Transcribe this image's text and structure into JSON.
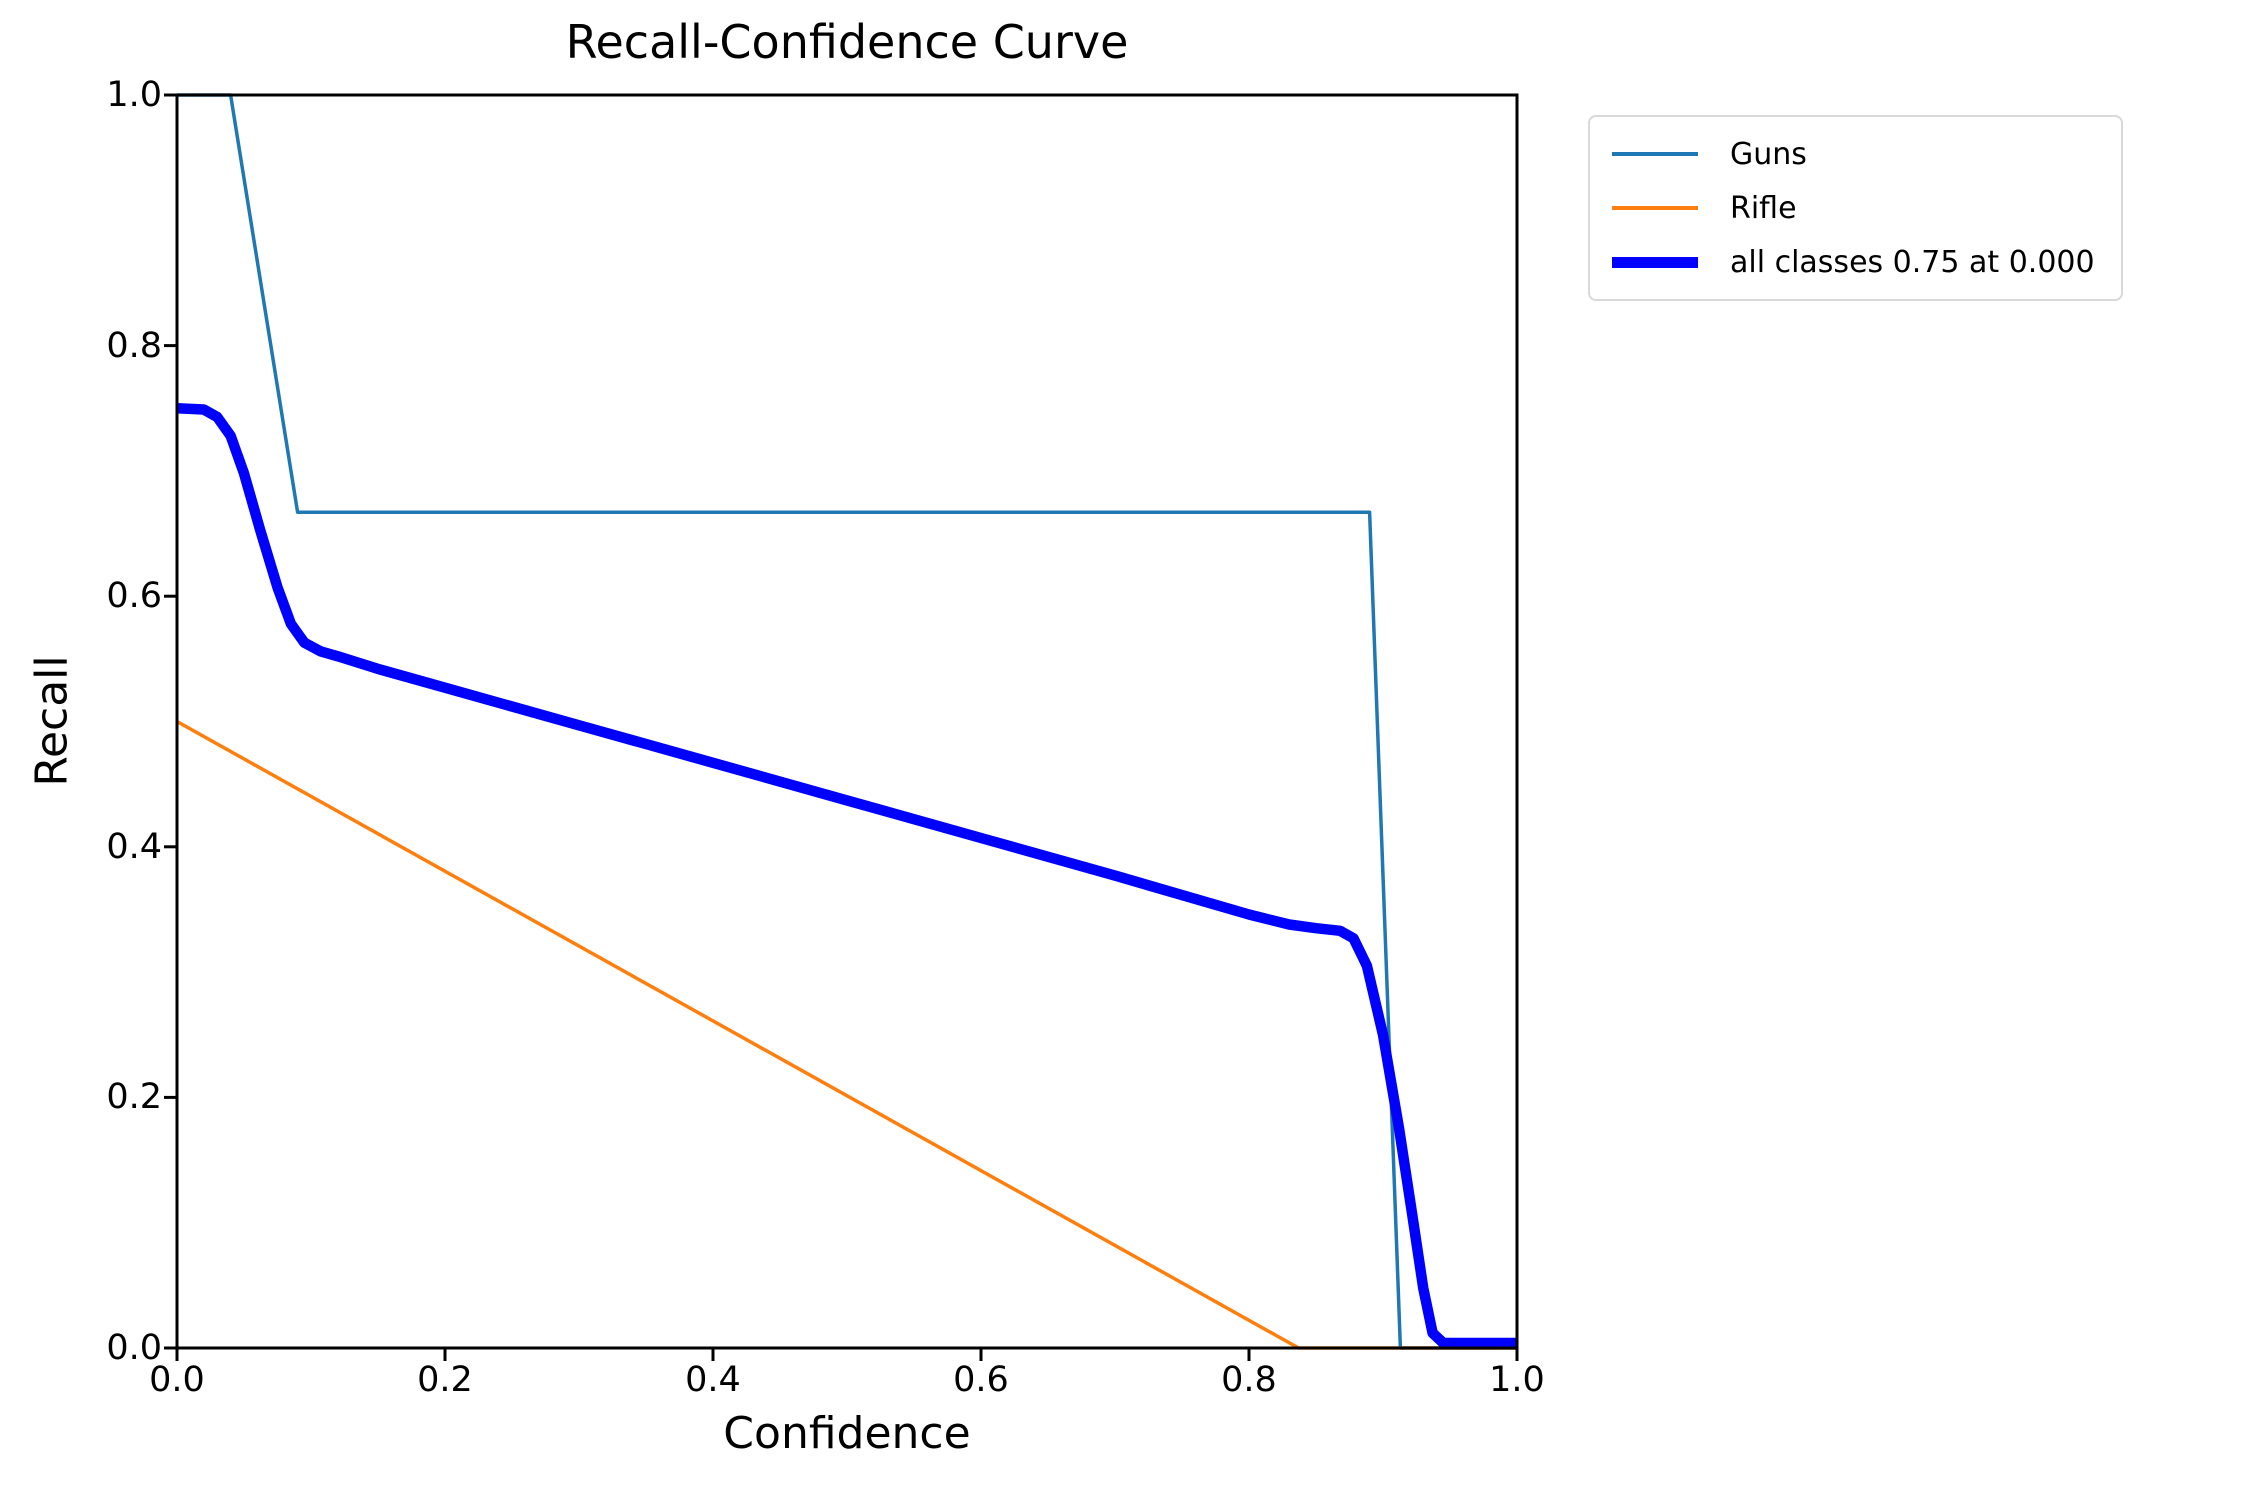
{
  "figure": {
    "title": "Recall-Confidence Curve",
    "xlabel": "Confidence",
    "ylabel": "Recall"
  },
  "legend": {
    "position": "outside-upper-right",
    "items": [
      {
        "label": "Guns",
        "color": "#1f77b4",
        "weight": "thin"
      },
      {
        "label": "Rifle",
        "color": "#ff7f0e",
        "weight": "thin"
      },
      {
        "label": "all classes 0.75 at 0.000",
        "color": "#0000ff",
        "weight": "thick"
      }
    ]
  },
  "chart_data": {
    "type": "line",
    "title": "Recall-Confidence Curve",
    "xlabel": "Confidence",
    "ylabel": "Recall",
    "xlim": [
      0.0,
      1.0
    ],
    "ylim": [
      0.0,
      1.0
    ],
    "xticks": [
      0.0,
      0.2,
      0.4,
      0.6,
      0.8,
      1.0
    ],
    "yticks": [
      0.0,
      0.2,
      0.4,
      0.6,
      0.8,
      1.0
    ],
    "xtick_labels": [
      "0.0",
      "0.2",
      "0.4",
      "0.6",
      "0.8",
      "1.0"
    ],
    "ytick_labels": [
      "0.0",
      "0.2",
      "0.4",
      "0.6",
      "0.8",
      "1.0"
    ],
    "grid": false,
    "legend_position": "outside upper right",
    "axis_color": "#000000",
    "series": [
      {
        "name": "Guns",
        "color": "#1f77b4",
        "linewidth": 3.5,
        "points": [
          [
            0.0,
            1.0
          ],
          [
            0.04,
            1.0
          ],
          [
            0.09,
            0.667
          ],
          [
            0.89,
            0.667
          ],
          [
            0.913,
            0.0
          ],
          [
            1.0,
            0.0
          ]
        ]
      },
      {
        "name": "Rifle",
        "color": "#ff7f0e",
        "linewidth": 3.5,
        "points": [
          [
            0.0,
            0.5
          ],
          [
            0.837,
            0.0
          ],
          [
            1.0,
            0.0
          ]
        ]
      },
      {
        "name": "all classes 0.75 at 0.000",
        "color": "#0000ff",
        "linewidth": 10.5,
        "points": [
          [
            0.0,
            0.75
          ],
          [
            0.02,
            0.749
          ],
          [
            0.03,
            0.743
          ],
          [
            0.04,
            0.728
          ],
          [
            0.05,
            0.698
          ],
          [
            0.062,
            0.653
          ],
          [
            0.075,
            0.607
          ],
          [
            0.085,
            0.578
          ],
          [
            0.095,
            0.563
          ],
          [
            0.107,
            0.556
          ],
          [
            0.12,
            0.552
          ],
          [
            0.15,
            0.542
          ],
          [
            0.2,
            0.527
          ],
          [
            0.3,
            0.497
          ],
          [
            0.4,
            0.467
          ],
          [
            0.5,
            0.437
          ],
          [
            0.6,
            0.407
          ],
          [
            0.7,
            0.377
          ],
          [
            0.8,
            0.346
          ],
          [
            0.83,
            0.338
          ],
          [
            0.85,
            0.335
          ],
          [
            0.868,
            0.333
          ],
          [
            0.878,
            0.327
          ],
          [
            0.888,
            0.305
          ],
          [
            0.9,
            0.25
          ],
          [
            0.912,
            0.175
          ],
          [
            0.922,
            0.105
          ],
          [
            0.93,
            0.048
          ],
          [
            0.937,
            0.012
          ],
          [
            0.945,
            0.004
          ],
          [
            1.0,
            0.004
          ]
        ]
      }
    ]
  }
}
